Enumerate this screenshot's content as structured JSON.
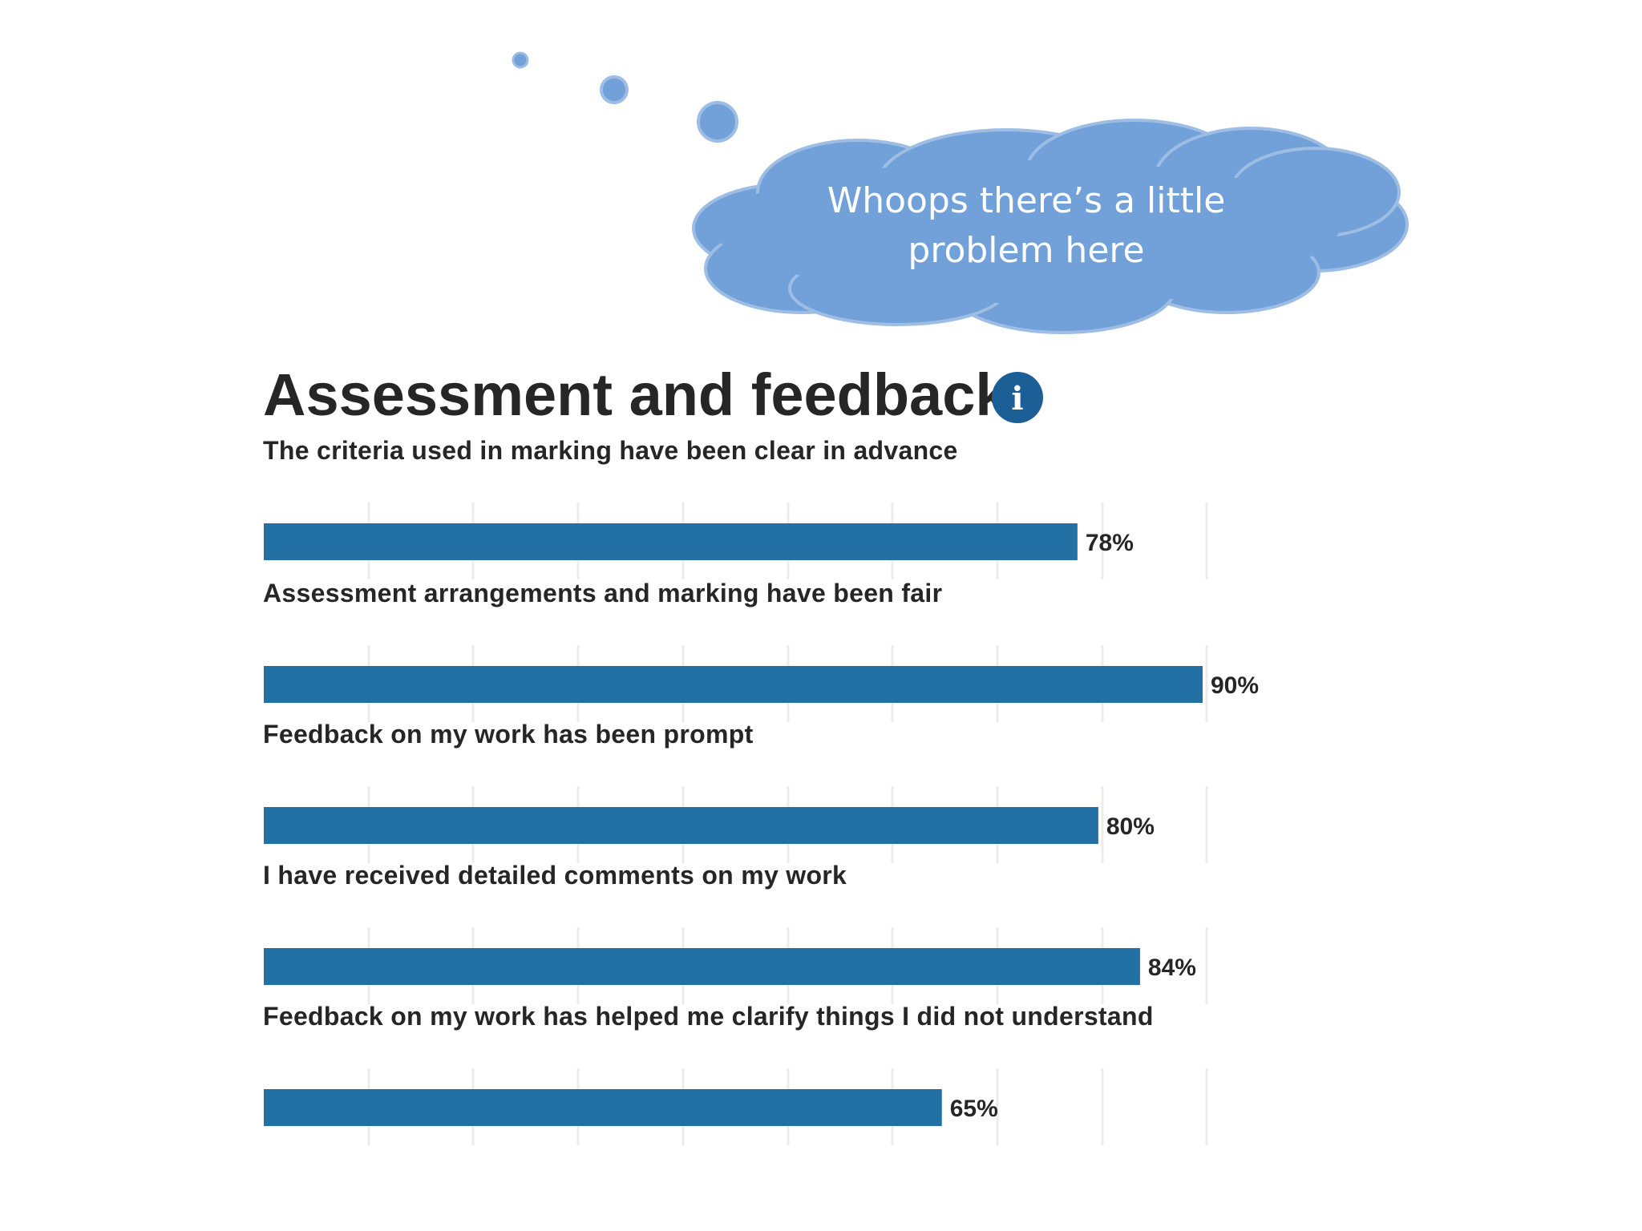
{
  "callout": {
    "line1": "Whoops there’s a little",
    "line2": "problem here"
  },
  "info_icon": "info-icon",
  "colors": {
    "bar": "#2270a4",
    "cloud_fill": "#72a0d9",
    "cloud_stroke": "#9dbde4",
    "info": "#1c5f96",
    "grid": "#ececec"
  },
  "chart_data": {
    "type": "bar",
    "orientation": "horizontal",
    "title": "Assessment and feedback",
    "categories": [
      "The criteria used in marking have been clear in advance",
      "Assessment arrangements and marking have been fair",
      "Feedback on my work has been prompt",
      "I have received detailed comments on my work",
      "Feedback on my work has helped me clarify things I did not understand"
    ],
    "values": [
      78,
      90,
      80,
      84,
      65
    ],
    "value_labels": [
      "78%",
      "90%",
      "80%",
      "84%",
      "65%"
    ],
    "xlim": [
      0,
      90
    ],
    "grid": true
  }
}
